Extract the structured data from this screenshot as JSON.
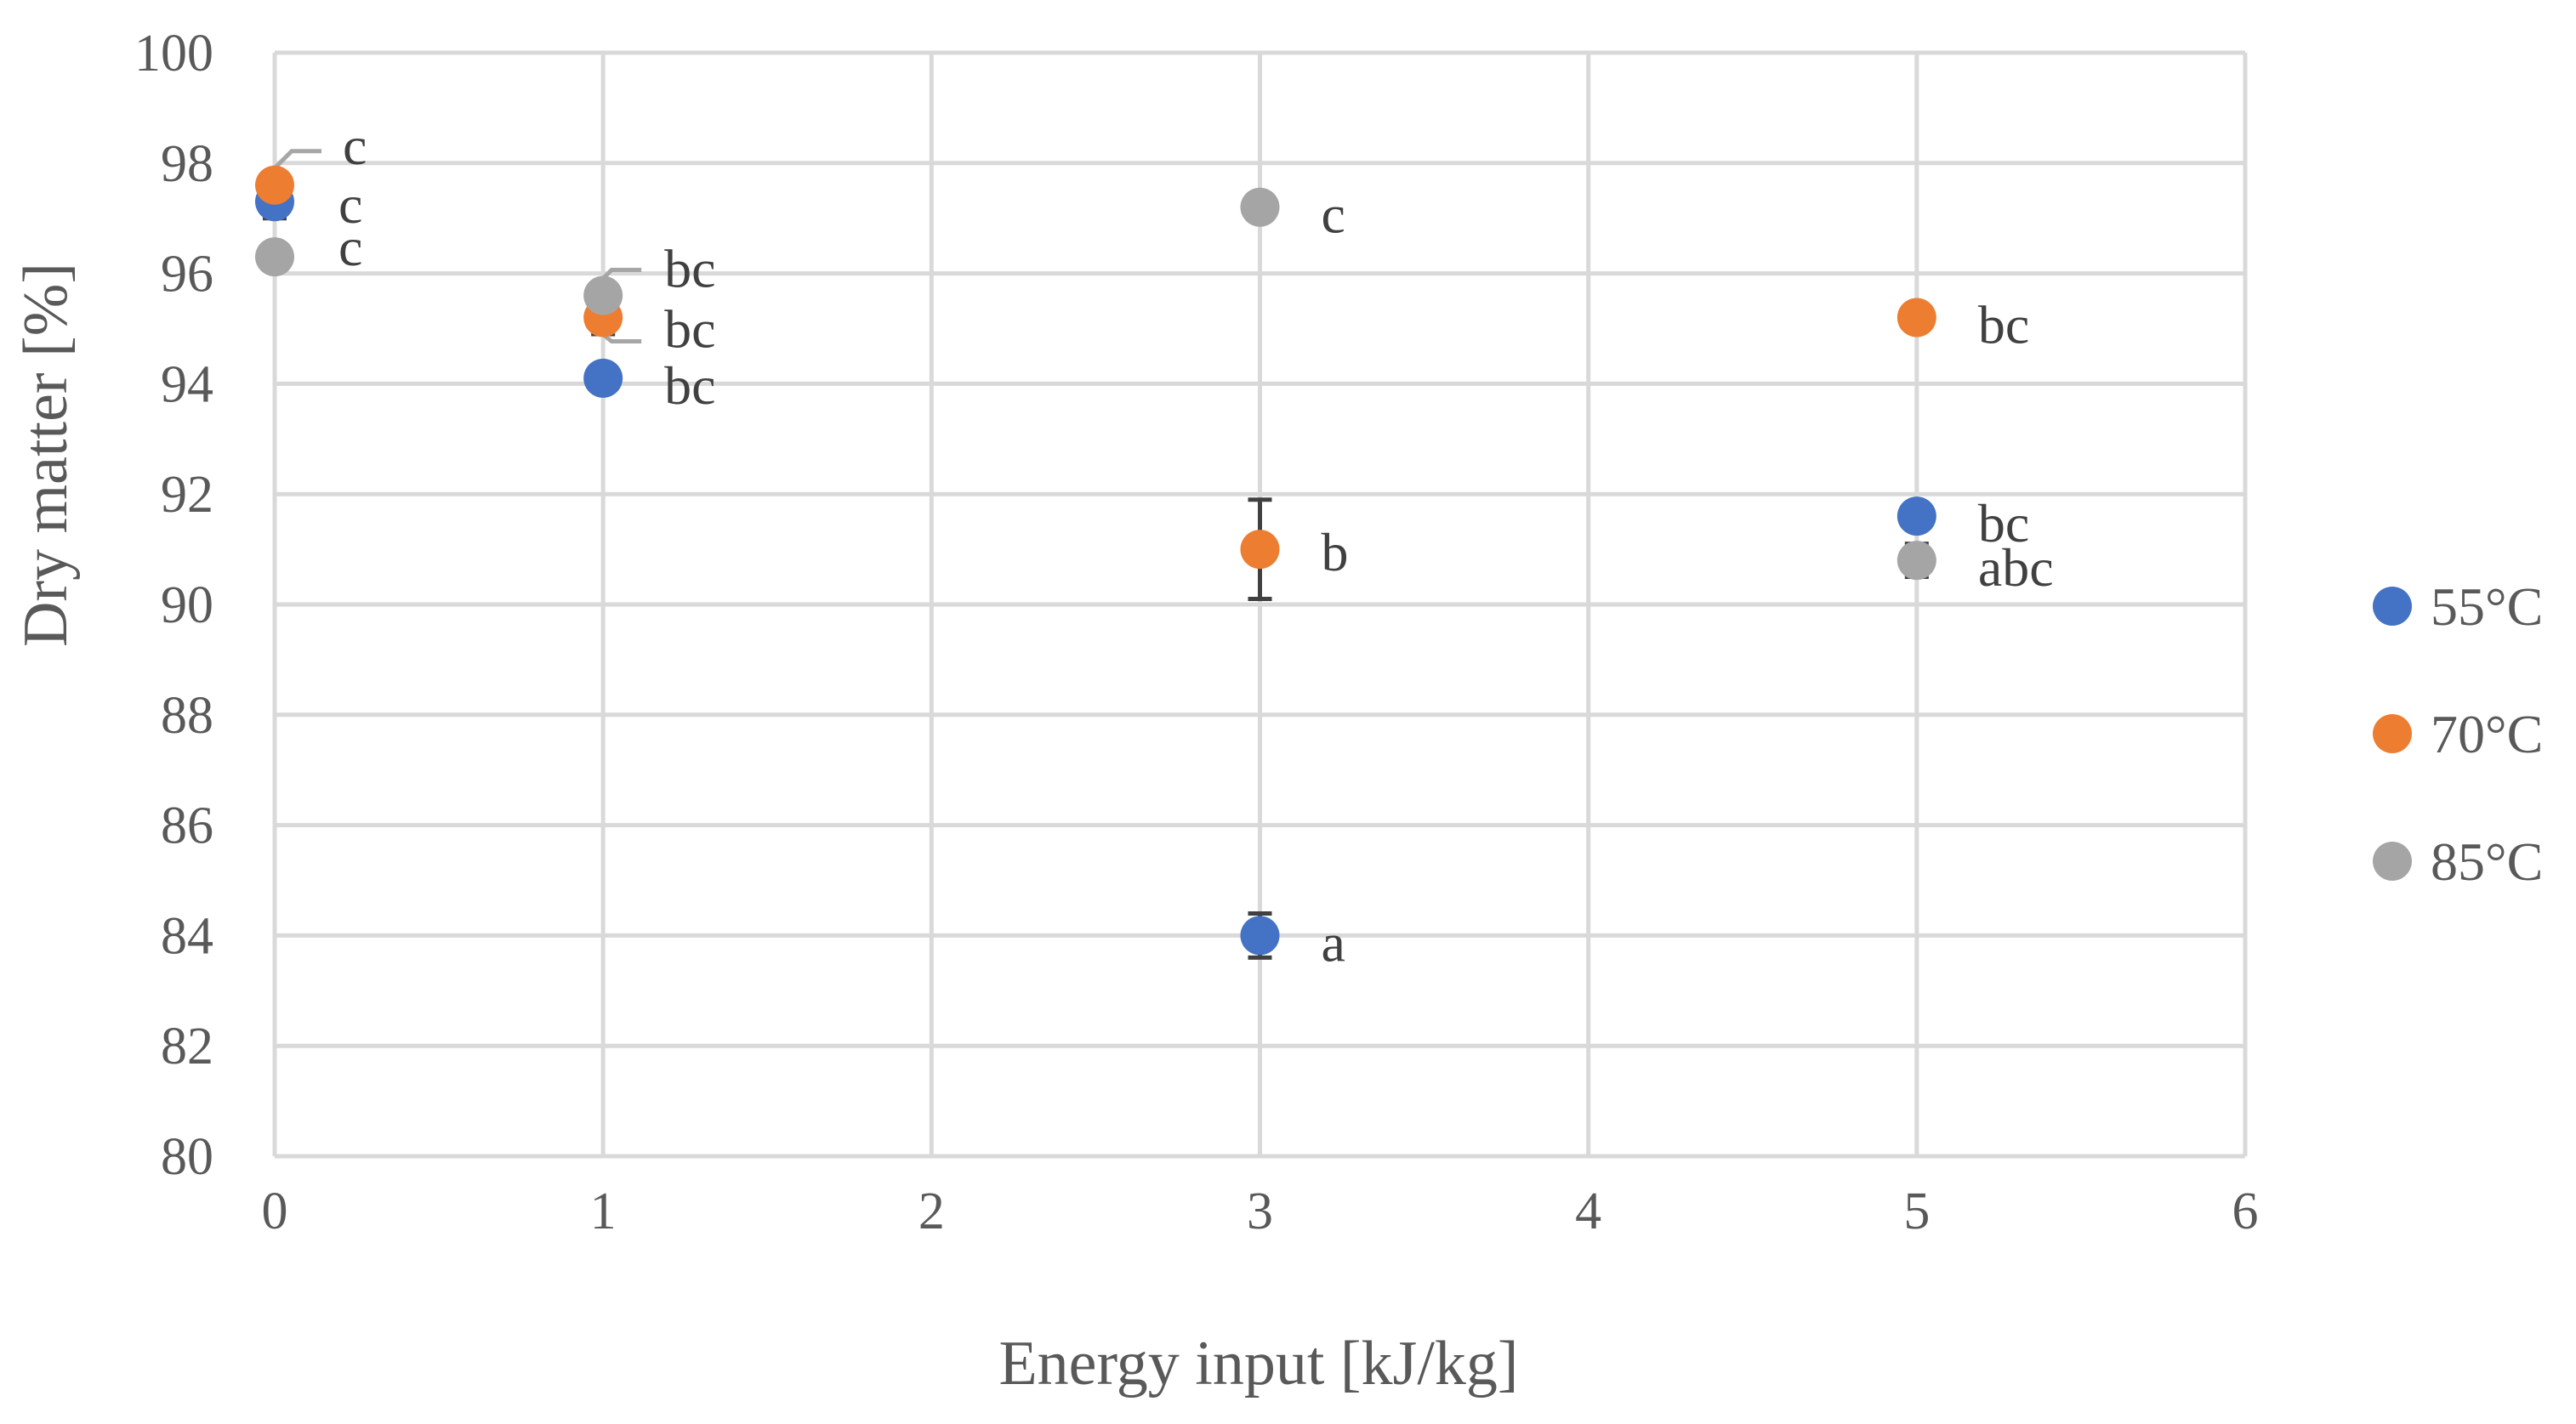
{
  "chart_data": {
    "type": "scatter",
    "title": "",
    "xlabel": "Energy input [kJ/kg]",
    "ylabel": "Dry matter [%]",
    "xlim": [
      0,
      6
    ],
    "ylim": [
      80,
      100
    ],
    "x_ticks": [
      "0",
      "1",
      "2",
      "3",
      "4",
      "5",
      "6"
    ],
    "y_ticks": [
      "80",
      "82",
      "84",
      "86",
      "88",
      "90",
      "92",
      "94",
      "96",
      "98",
      "100"
    ],
    "grid": true,
    "legend_position": "right",
    "series": [
      {
        "name": "55°C",
        "color": "#4472c4",
        "points": [
          {
            "x": 0,
            "y": 97.3,
            "err": 0.3,
            "label": "c"
          },
          {
            "x": 1,
            "y": 94.1,
            "err": 0.1,
            "label": "bc"
          },
          {
            "x": 3,
            "y": 84.0,
            "err": 0.4,
            "label": "a"
          },
          {
            "x": 5,
            "y": 91.6,
            "err": 0.1,
            "label": "bc"
          }
        ]
      },
      {
        "name": "70°C",
        "color": "#ed7d31",
        "points": [
          {
            "x": 0,
            "y": 97.6,
            "err": 0.1,
            "label": "c"
          },
          {
            "x": 1,
            "y": 95.2,
            "err": 0.3,
            "label": "bc"
          },
          {
            "x": 3,
            "y": 91.0,
            "err": 0.9,
            "label": "b"
          },
          {
            "x": 5,
            "y": 95.2,
            "err": 0.1,
            "label": "bc"
          }
        ]
      },
      {
        "name": "85°C",
        "color": "#a5a5a5",
        "points": [
          {
            "x": 0,
            "y": 96.3,
            "err": 0.1,
            "label": "c"
          },
          {
            "x": 1,
            "y": 95.6,
            "err": 0.1,
            "label": "bc"
          },
          {
            "x": 3,
            "y": 97.2,
            "err": 0.1,
            "label": "c"
          },
          {
            "x": 5,
            "y": 90.8,
            "err": 0.3,
            "label": "abc"
          }
        ]
      }
    ]
  }
}
